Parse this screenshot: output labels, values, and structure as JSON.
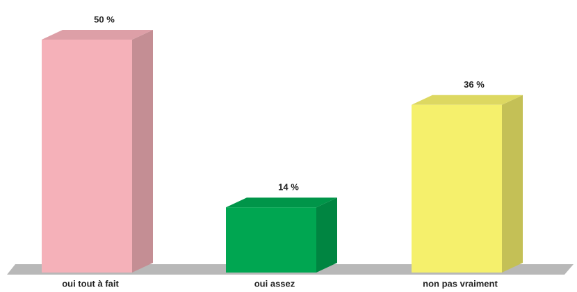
{
  "chart_data": {
    "type": "bar3d",
    "categories": [
      "oui tout à fait",
      "oui assez",
      "non pas vraiment"
    ],
    "values": [
      50,
      14,
      36
    ],
    "value_labels": [
      "50 %",
      "14 %",
      "36 %"
    ],
    "colors": [
      "#f5b1b9",
      "#00a651",
      "#f5f06c"
    ]
  }
}
